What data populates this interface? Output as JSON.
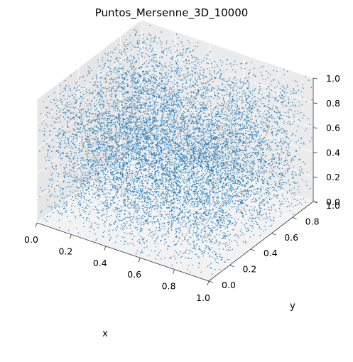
{
  "chart_data": {
    "type": "scatter",
    "projection": "3d",
    "title": "Puntos_Mersenne_3D_10000",
    "xlabel": "x",
    "ylabel": "y",
    "zlabel": "",
    "xlim": [
      0,
      1
    ],
    "ylim": [
      0,
      1
    ],
    "zlim": [
      0,
      1
    ],
    "x_ticks": [
      "0.0",
      "0.2",
      "0.4",
      "0.6",
      "0.8",
      "1.0"
    ],
    "y_ticks": [
      "0.0",
      "0.2",
      "0.4",
      "0.6",
      "0.8",
      "1.0"
    ],
    "z_ticks": [
      "0.0",
      "0.2",
      "0.4",
      "0.6",
      "0.8",
      "1.0"
    ],
    "point_count": 10000,
    "distribution": "uniform random in unit cube",
    "marker_color": "#1f77b4",
    "grid": true
  }
}
